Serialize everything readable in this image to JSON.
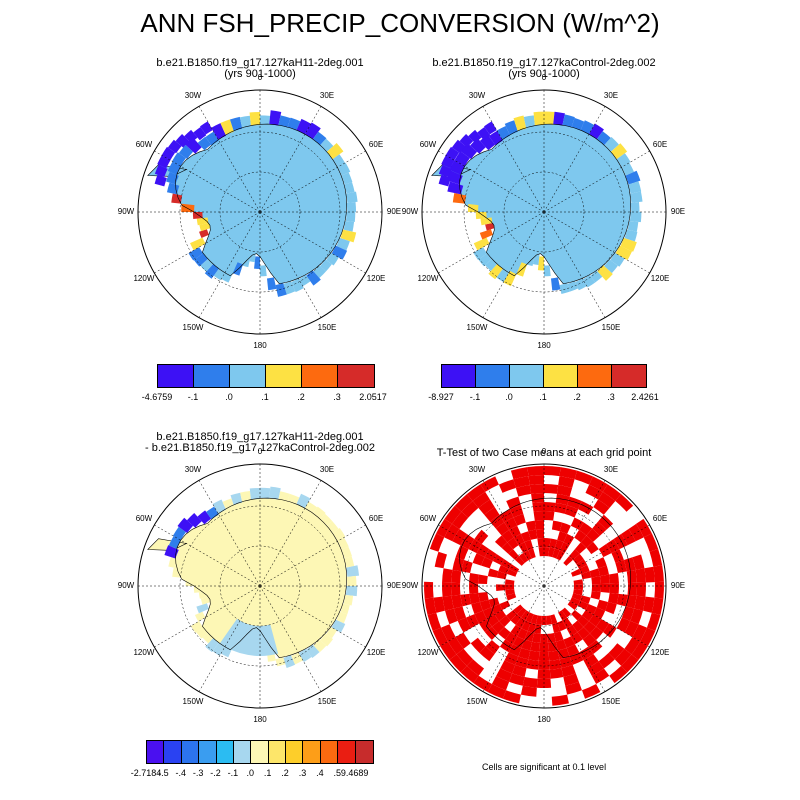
{
  "title": "ANN FSH_PRECIP_CONVERSION (W/m^2)",
  "panels": [
    {
      "title_line1": "b.e21.B1850.f19_g17.127kaH11-2deg.001",
      "title_line2": "(yrs 901-1000)"
    },
    {
      "title_line1": "b.e21.B1850.f19_g17.127kaControl-2deg.002",
      "title_line2": "(yrs 901-1000)"
    },
    {
      "title_line1": "b.e21.B1850.f19_g17.127kaH11-2deg.001",
      "title_line2": "- b.e21.B1850.f19_g17.127kaControl-2deg.002"
    },
    {
      "title_line1": "T-Test of two Case means at each grid point",
      "title_line2": ""
    }
  ],
  "lon_labels": {
    "top": "0",
    "right": "90E",
    "bottom": "180",
    "left": "90W",
    "l30E": "30E",
    "l60E": "60E",
    "l120E": "120E",
    "l150E": "150E",
    "l30W": "30W",
    "l60W": "60W",
    "l120W": "120W",
    "l150W": "150W"
  },
  "colorbar_case1": {
    "labels": [
      "-4.6759",
      "-.1",
      ".0",
      ".1",
      ".2",
      ".3",
      "2.0517"
    ],
    "colors": [
      "#3d11f5",
      "#2f7eec",
      "#7ec8ee",
      "#fde143",
      "#fd6a0f",
      "#d62b29"
    ]
  },
  "colorbar_case2": {
    "labels": [
      "-8.927",
      "-.1",
      ".0",
      ".1",
      ".2",
      ".3",
      "2.4261"
    ],
    "colors": [
      "#3d11f5",
      "#2f7eec",
      "#7ec8ee",
      "#fde143",
      "#fd6a0f",
      "#d62b29"
    ]
  },
  "colorbar_diff": {
    "labels": [
      "-2.7184",
      "-.5",
      "-.4",
      "-.3",
      "-.2",
      "-.1",
      ".0",
      ".1",
      ".2",
      ".3",
      ".4",
      ".5",
      "9.4689"
    ],
    "colors": [
      "#4a10f0",
      "#2a42f2",
      "#2c74ee",
      "#3a9df0",
      "#2bbcf2",
      "#a7d7ef",
      "#fdf7b5",
      "#fde66a",
      "#fdce2a",
      "#fd9e18",
      "#fb6a10",
      "#ea1e12",
      "#c72c2c"
    ]
  },
  "map_colors": {
    "land": "#7ec8ee",
    "diff_land": "#fdf7b5",
    "diff_low": "#a7d7ef",
    "sig": "#ee0000",
    "blue": "#2f7eec",
    "purple": "#3d11f5",
    "yellow": "#fde143",
    "orange": "#fd6a0f",
    "red": "#d62b29"
  },
  "ttest_note": "Cells are significant at 0.1 level"
}
